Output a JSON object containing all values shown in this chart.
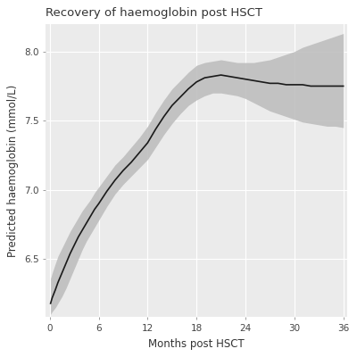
{
  "title": "Recovery of haemoglobin post HSCT",
  "xlabel": "Months post HSCT",
  "ylabel": "Predicted haemoglobin (mmol/L)",
  "xlim": [
    -0.5,
    36.5
  ],
  "ylim": [
    6.08,
    8.2
  ],
  "xticks": [
    0,
    6,
    12,
    18,
    24,
    30,
    36
  ],
  "yticks": [
    6.5,
    7.0,
    7.5,
    8.0
  ],
  "fig_bg_color": "#FFFFFF",
  "plot_bg_color": "#EBEBEB",
  "grid_color": "#FFFFFF",
  "line_color": "#1A1A1A",
  "band_color": "#BBBBBB",
  "band_alpha": 0.85,
  "line_width": 1.2,
  "title_fontsize": 9.5,
  "axis_label_fontsize": 8.5,
  "tick_fontsize": 7.5,
  "curve_x": [
    0.1,
    0.3,
    0.7,
    1,
    1.5,
    2,
    2.5,
    3,
    3.5,
    4,
    4.5,
    5,
    5.5,
    6,
    7,
    8,
    9,
    10,
    11,
    12,
    13,
    14,
    15,
    16,
    17,
    18,
    19,
    20,
    21,
    22,
    23,
    24,
    25,
    26,
    27,
    28,
    29,
    30,
    31,
    32,
    33,
    34,
    35,
    36
  ],
  "curve_y": [
    6.18,
    6.22,
    6.28,
    6.33,
    6.4,
    6.47,
    6.54,
    6.6,
    6.66,
    6.71,
    6.76,
    6.81,
    6.86,
    6.9,
    6.99,
    7.07,
    7.14,
    7.2,
    7.27,
    7.34,
    7.44,
    7.53,
    7.61,
    7.67,
    7.73,
    7.78,
    7.81,
    7.82,
    7.83,
    7.82,
    7.81,
    7.8,
    7.79,
    7.78,
    7.77,
    7.77,
    7.76,
    7.76,
    7.76,
    7.75,
    7.75,
    7.75,
    7.75,
    7.75
  ],
  "upper_ci": [
    6.36,
    6.4,
    6.47,
    6.52,
    6.58,
    6.64,
    6.7,
    6.75,
    6.8,
    6.85,
    6.89,
    6.93,
    6.98,
    7.02,
    7.1,
    7.18,
    7.24,
    7.31,
    7.38,
    7.46,
    7.56,
    7.65,
    7.73,
    7.79,
    7.85,
    7.9,
    7.92,
    7.93,
    7.94,
    7.93,
    7.92,
    7.92,
    7.92,
    7.93,
    7.94,
    7.96,
    7.98,
    8.0,
    8.03,
    8.05,
    8.07,
    8.09,
    8.11,
    8.13
  ],
  "lower_ci": [
    6.1,
    6.12,
    6.15,
    6.18,
    6.23,
    6.29,
    6.36,
    6.43,
    6.5,
    6.57,
    6.63,
    6.68,
    6.73,
    6.78,
    6.88,
    6.97,
    7.04,
    7.1,
    7.16,
    7.22,
    7.31,
    7.4,
    7.48,
    7.55,
    7.61,
    7.65,
    7.68,
    7.7,
    7.7,
    7.69,
    7.68,
    7.66,
    7.63,
    7.6,
    7.57,
    7.55,
    7.53,
    7.51,
    7.49,
    7.48,
    7.47,
    7.46,
    7.46,
    7.45
  ]
}
